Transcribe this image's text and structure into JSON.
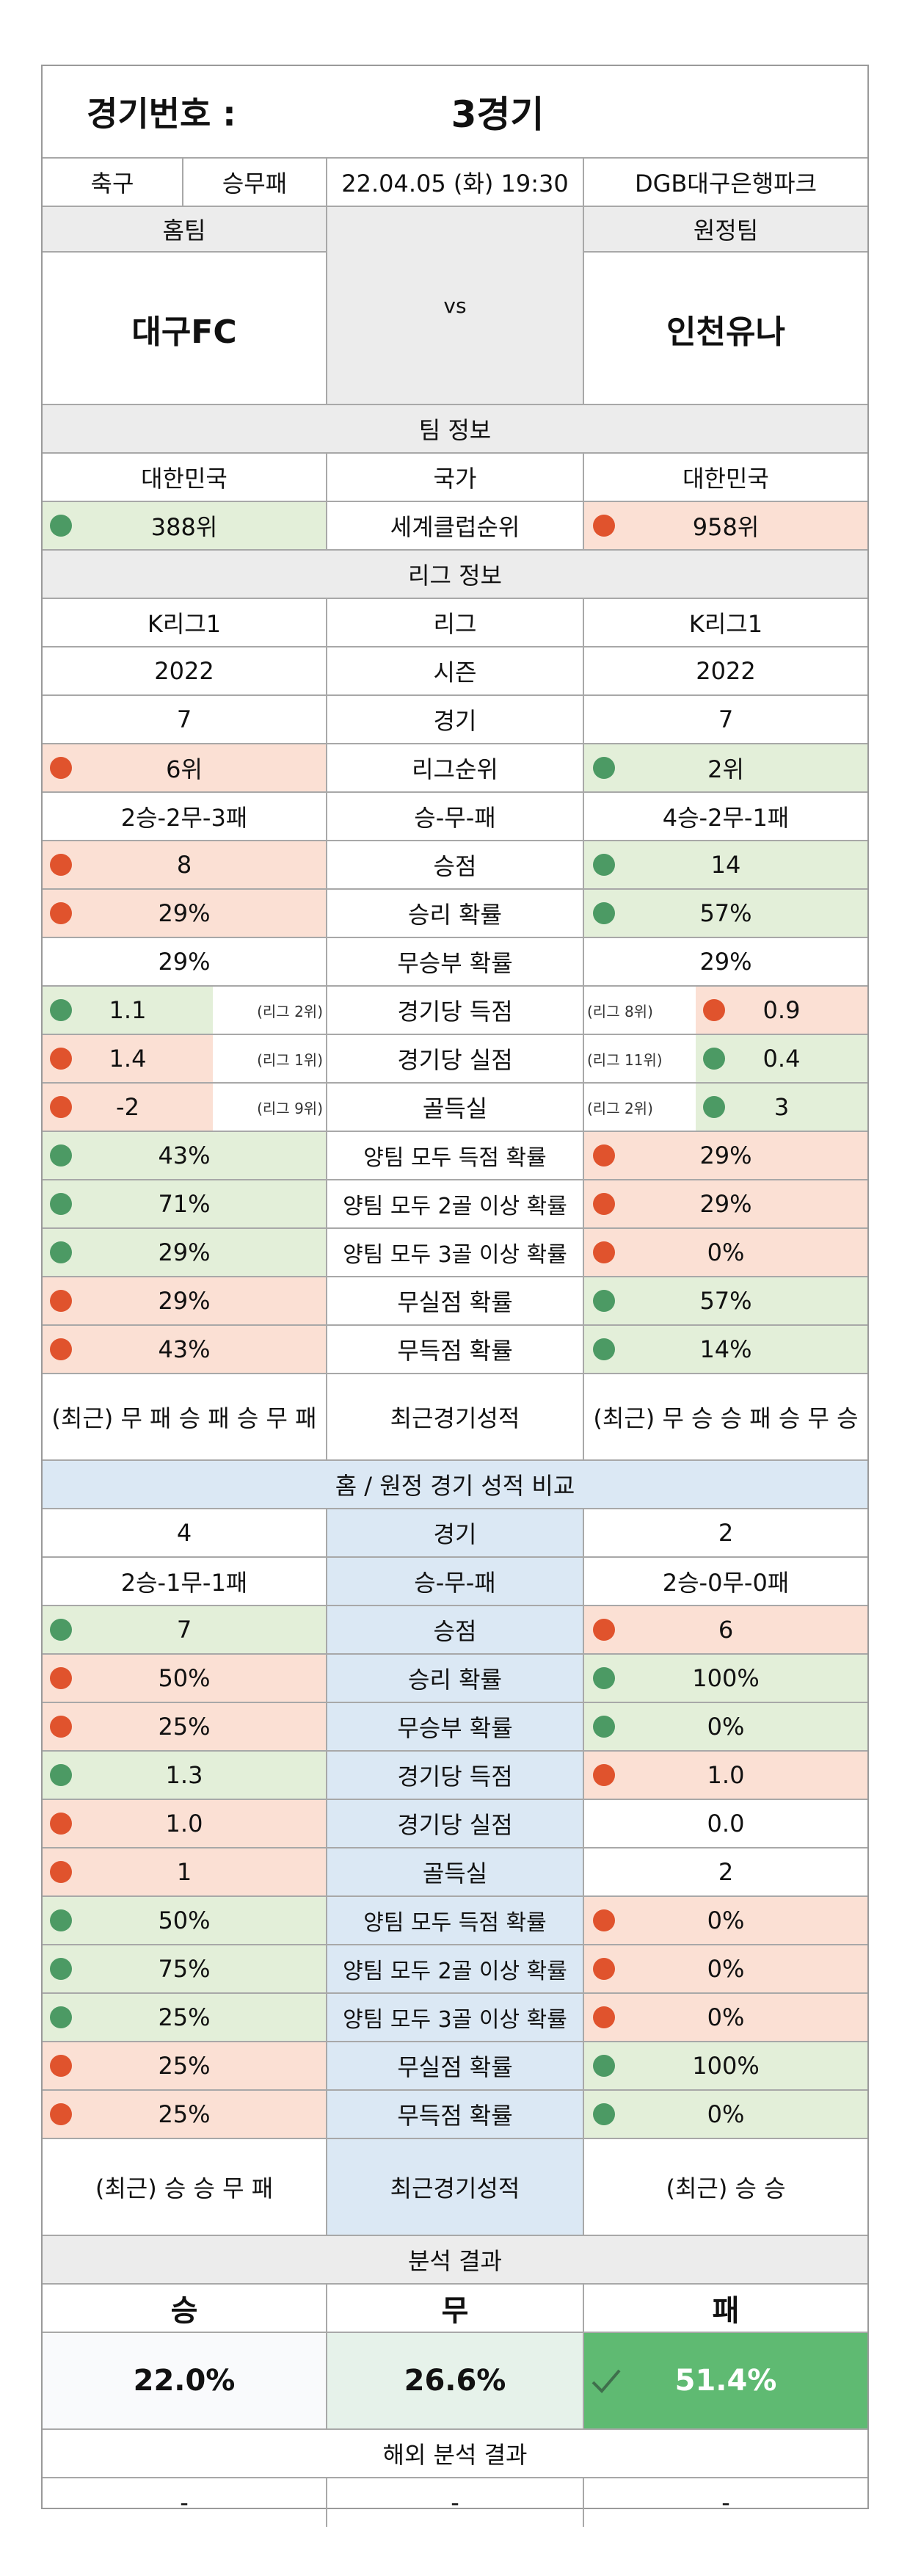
{
  "header": {
    "label": "경기번호 :",
    "value": "3경기"
  },
  "info": {
    "sport": "축구",
    "bet_type": "승무패",
    "datetime": "22.04.05 (화) 19:30",
    "venue": "DGB대구은행파크"
  },
  "teams": {
    "home_label": "홈팀",
    "away_label": "원정팀",
    "home": "대구FC",
    "away": "인천유나",
    "vs": "vs"
  },
  "team_info": {
    "title": "팀 정보",
    "rows": [
      {
        "home": "대한민국",
        "label": "국가",
        "away": "대한민국"
      },
      {
        "home": "388위",
        "label": "세계클럽순위",
        "away": "958위"
      }
    ]
  },
  "league_info": {
    "title": "리그 정보",
    "rows": [
      {
        "home": "K리그1",
        "label": "리그",
        "away": "K리그1"
      },
      {
        "home": "2022",
        "label": "시즌",
        "away": "2022"
      },
      {
        "home": "7",
        "label": "경기",
        "away": "7"
      },
      {
        "home": "6위",
        "label": "리그순위",
        "away": "2위"
      },
      {
        "home": "2승-2무-3패",
        "label": "승-무-패",
        "away": "4승-2무-1패"
      },
      {
        "home": "8",
        "label": "승점",
        "away": "14"
      },
      {
        "home": "29%",
        "label": "승리 확률",
        "away": "57%"
      },
      {
        "home": "29%",
        "label": "무승부 확률",
        "away": "29%"
      },
      {
        "home": "1.1",
        "home_rank": "(리그 2위)",
        "label": "경기당 득점",
        "away_rank": "(리그 8위)",
        "away": "0.9"
      },
      {
        "home": "1.4",
        "home_rank": "(리그 1위)",
        "label": "경기당 실점",
        "away_rank": "(리그 11위)",
        "away": "0.4"
      },
      {
        "home": "-2",
        "home_rank": "(리그 9위)",
        "label": "골득실",
        "away_rank": "(리그 2위)",
        "away": "3"
      },
      {
        "home": "43%",
        "label": "양팀 모두 득점 확률",
        "away": "29%"
      },
      {
        "home": "71%",
        "label": "양팀 모두 2골 이상 확률",
        "away": "29%"
      },
      {
        "home": "29%",
        "label": "양팀 모두 3골 이상 확률",
        "away": "0%"
      },
      {
        "home": "29%",
        "label": "무실점 확률",
        "away": "57%"
      },
      {
        "home": "43%",
        "label": "무득점 확률",
        "away": "14%"
      },
      {
        "home": "(최근) 무 패 승 패 승 무 패",
        "label": "최근경기성적",
        "away": "(최근) 무 승 승 패 승 무 승"
      }
    ]
  },
  "home_away": {
    "title": "홈 / 원정 경기 성적 비교",
    "rows": [
      {
        "home": "4",
        "label": "경기",
        "away": "2"
      },
      {
        "home": "2승-1무-1패",
        "label": "승-무-패",
        "away": "2승-0무-0패"
      },
      {
        "home": "7",
        "label": "승점",
        "away": "6"
      },
      {
        "home": "50%",
        "label": "승리 확률",
        "away": "100%"
      },
      {
        "home": "25%",
        "label": "무승부 확률",
        "away": "0%"
      },
      {
        "home": "1.3",
        "label": "경기당 득점",
        "away": "1.0"
      },
      {
        "home": "1.0",
        "label": "경기당 실점",
        "away": "0.0"
      },
      {
        "home": "1",
        "label": "골득실",
        "away": "2"
      },
      {
        "home": "50%",
        "label": "양팀 모두 득점 확률",
        "away": "0%"
      },
      {
        "home": "75%",
        "label": "양팀 모두 2골 이상 확률",
        "away": "0%"
      },
      {
        "home": "25%",
        "label": "양팀 모두 3골 이상 확률",
        "away": "0%"
      },
      {
        "home": "25%",
        "label": "무실점 확률",
        "away": "100%"
      },
      {
        "home": "25%",
        "label": "무득점 확률",
        "away": "0%"
      },
      {
        "home": "(최근) 승 승 무 패",
        "label": "최근경기성적",
        "away": "(최근) 승 승"
      }
    ]
  },
  "analysis": {
    "title": "분석 결과",
    "win_label": "승",
    "draw_label": "무",
    "lose_label": "패",
    "win": "22.0%",
    "draw": "26.6%",
    "lose": "51.4%",
    "check_icon": "check-icon"
  },
  "overseas": {
    "title": "해외 분석 결과",
    "win": "-",
    "draw": "-",
    "lose": "-"
  },
  "colors": {
    "green": "#e3efd9",
    "red": "#fbe0d4",
    "green_dot": "#4c9a64",
    "red_dot": "#e0532d",
    "result_green": "#5fba72",
    "blue": "#dbe8f4"
  }
}
